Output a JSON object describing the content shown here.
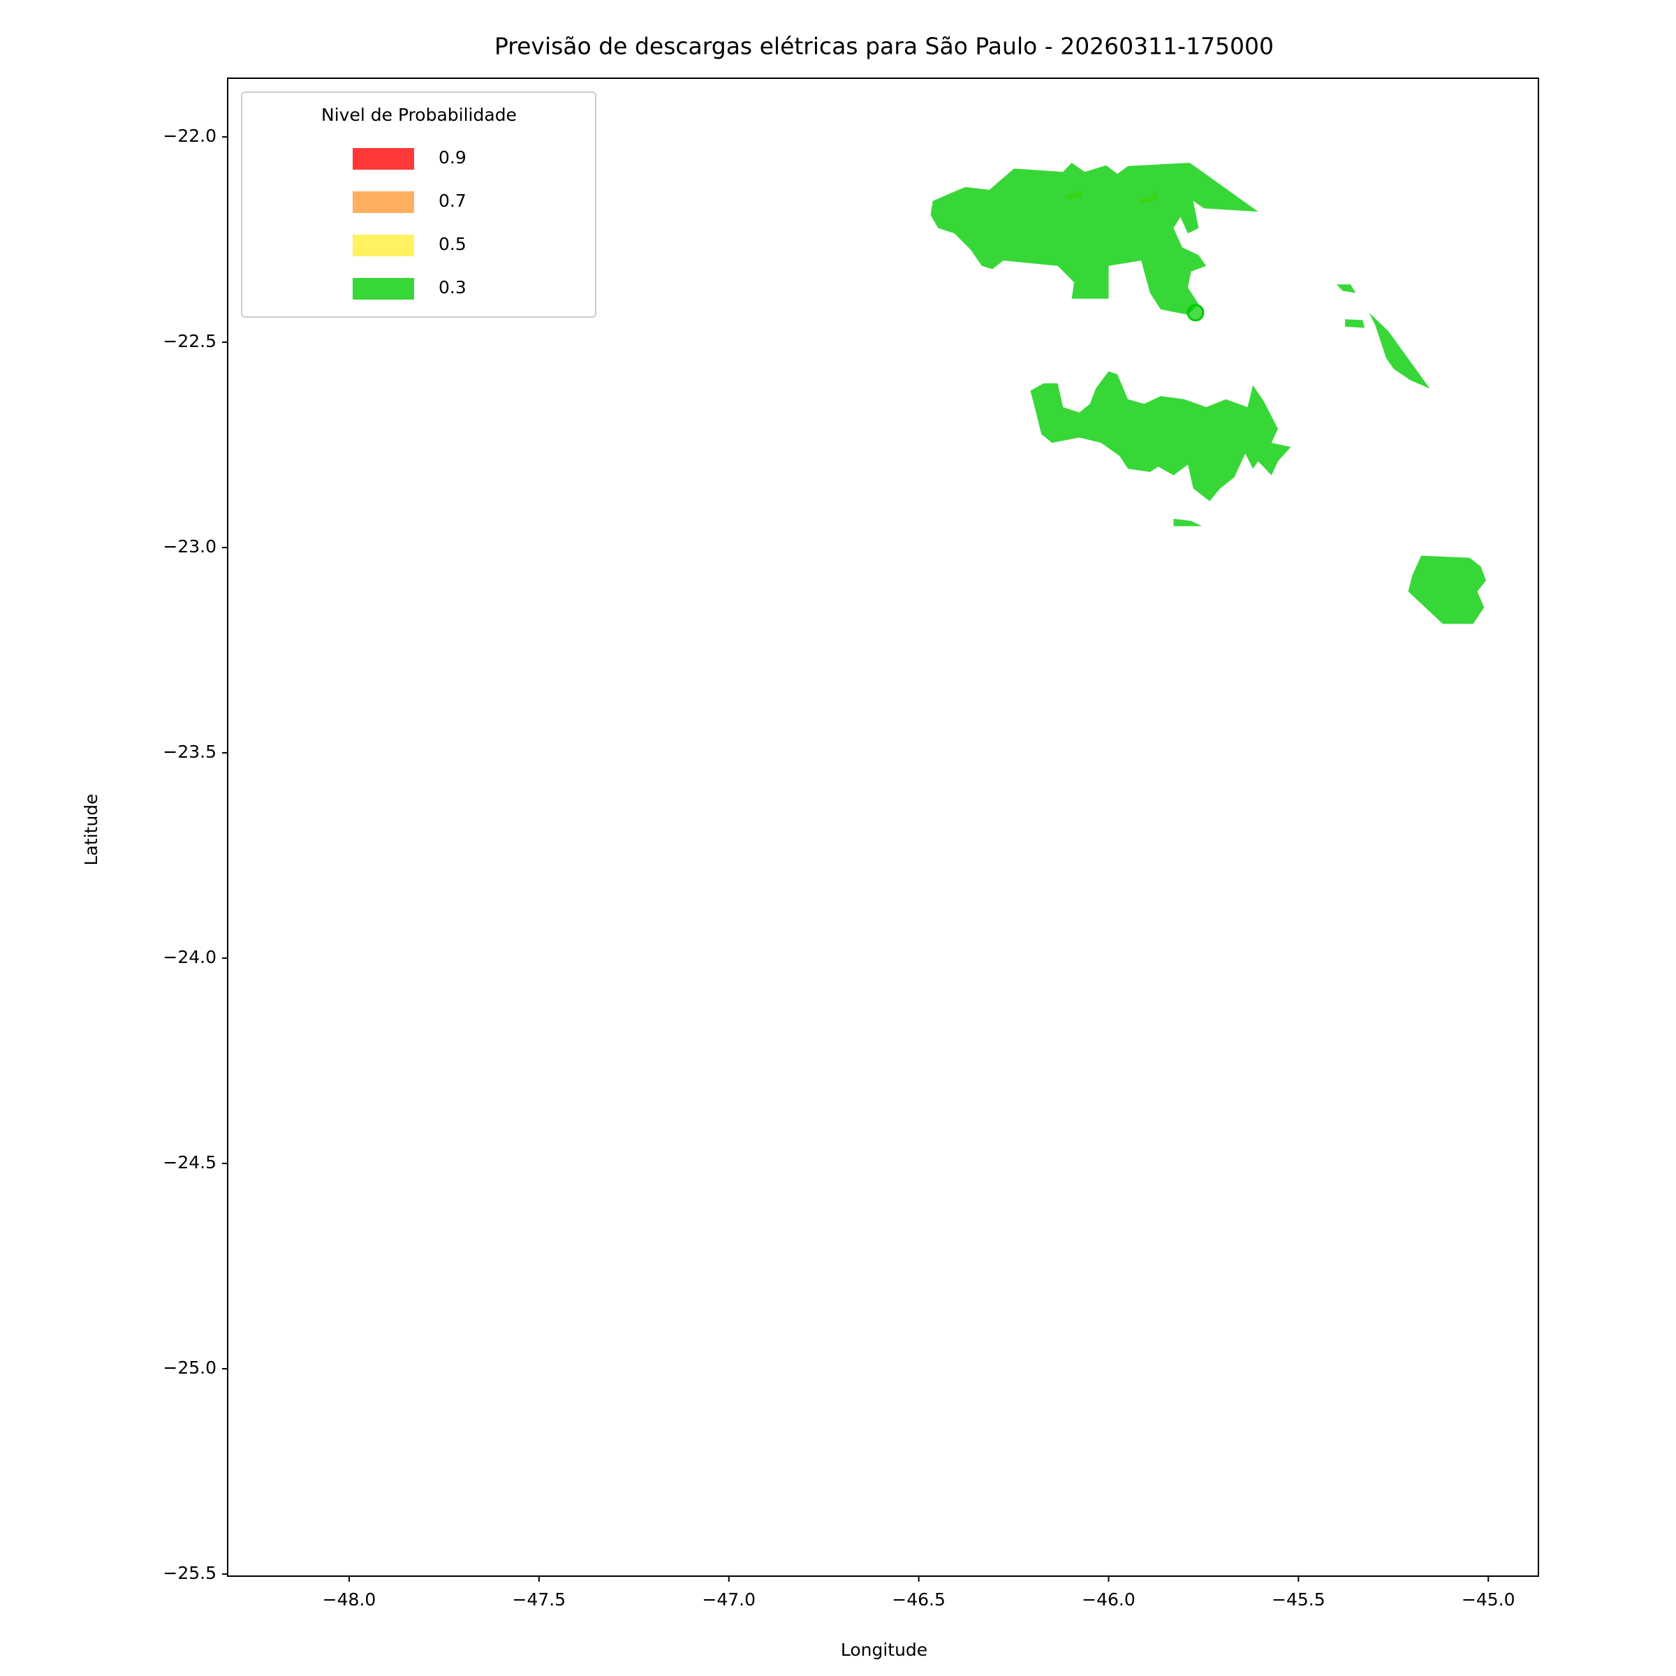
{
  "chart_data": {
    "type": "contour_map",
    "title": "Previsão de descargas elétricas para São Paulo - 20260311-175000",
    "x_label": "Longitude",
    "y_label": "Latitude",
    "xlim": [
      -48.32,
      -44.868
    ],
    "ylim": [
      -25.505,
      -21.857
    ],
    "xticks": [
      {
        "value": -48.0,
        "label": "−48.0"
      },
      {
        "value": -47.5,
        "label": "−47.5"
      },
      {
        "value": -47.0,
        "label": "−47.0"
      },
      {
        "value": -46.5,
        "label": "−46.5"
      },
      {
        "value": -46.0,
        "label": "−46.0"
      },
      {
        "value": -45.5,
        "label": "−45.5"
      },
      {
        "value": -45.0,
        "label": "−45.0"
      }
    ],
    "yticks": [
      {
        "value": -22.0,
        "label": "−22.0"
      },
      {
        "value": -22.5,
        "label": "−22.5"
      },
      {
        "value": -23.0,
        "label": "−23.0"
      },
      {
        "value": -23.5,
        "label": "−23.5"
      },
      {
        "value": -24.0,
        "label": "−24.0"
      },
      {
        "value": -24.5,
        "label": "−24.5"
      },
      {
        "value": -25.0,
        "label": "−25.0"
      },
      {
        "value": -25.5,
        "label": "−25.5"
      }
    ],
    "legend_title": "Nivel de Probabilidade",
    "legend_position": "upper left",
    "series": [
      {
        "name": "0.9",
        "color": "#ff0000",
        "polygons": []
      },
      {
        "name": "0.7",
        "color": "#ff9933",
        "polygons": []
      },
      {
        "name": "0.5",
        "color": "#ffee33",
        "polygons": [
          {
            "x": [
              -46.114,
              -46.074,
              -46.069,
              -46.114
            ],
            "y": [
              -22.143,
              -22.132,
              -22.148,
              -22.151
            ]
          },
          {
            "x": [
              -45.92,
              -45.886,
              -45.874,
              -45.874,
              -45.92
            ],
            "y": [
              -22.153,
              -22.143,
              -22.132,
              -22.156,
              -22.161
            ]
          }
        ]
      },
      {
        "name": "0.3",
        "color": "#00cc00",
        "polygons": [
          {
            "x": [
              -46.463,
              -46.411,
              -46.377,
              -46.314,
              -46.249,
              -46.12,
              -46.097,
              -46.063,
              -46.006,
              -45.977,
              -45.949,
              -45.786,
              -45.606,
              -45.749,
              -45.777,
              -45.763,
              -45.791,
              -45.811,
              -45.829,
              -45.806,
              -45.763,
              -45.743,
              -45.783,
              -45.791,
              -45.763,
              -45.791,
              -45.863,
              -45.891,
              -45.914,
              -46.0,
              -46.0,
              -46.097,
              -46.091,
              -46.134,
              -46.277,
              -46.306,
              -46.334,
              -46.363,
              -46.406,
              -46.449,
              -46.469
            ],
            "y": [
              -22.156,
              -22.135,
              -22.122,
              -22.129,
              -22.077,
              -22.085,
              -22.063,
              -22.085,
              -22.069,
              -22.09,
              -22.071,
              -22.063,
              -22.182,
              -22.174,
              -22.156,
              -22.222,
              -22.235,
              -22.195,
              -22.222,
              -22.269,
              -22.288,
              -22.314,
              -22.328,
              -22.367,
              -22.407,
              -22.433,
              -22.42,
              -22.38,
              -22.301,
              -22.314,
              -22.394,
              -22.394,
              -22.354,
              -22.314,
              -22.301,
              -22.322,
              -22.314,
              -22.275,
              -22.235,
              -22.222,
              -22.19
            ]
          },
          {
            "x": [
              -46.206,
              -46.171,
              -46.134,
              -46.12,
              -46.077,
              -46.049,
              -46.034,
              -46.0,
              -45.977,
              -45.949,
              -45.906,
              -45.863,
              -45.8,
              -45.743,
              -45.691,
              -45.634,
              -45.62,
              -45.591,
              -45.554,
              -45.571,
              -45.52,
              -45.554,
              -45.571,
              -45.606,
              -45.62,
              -45.64,
              -45.669,
              -45.706,
              -45.734,
              -45.777,
              -45.791,
              -45.829,
              -45.869,
              -45.891,
              -45.949,
              -45.971,
              -46.02,
              -46.077,
              -46.149,
              -46.177,
              -46.191
            ],
            "y": [
              -22.618,
              -22.6,
              -22.6,
              -22.658,
              -22.671,
              -22.65,
              -22.613,
              -22.571,
              -22.578,
              -22.639,
              -22.65,
              -22.631,
              -22.639,
              -22.658,
              -22.639,
              -22.658,
              -22.605,
              -22.644,
              -22.711,
              -22.745,
              -22.755,
              -22.79,
              -22.824,
              -22.79,
              -22.808,
              -22.771,
              -22.829,
              -22.856,
              -22.887,
              -22.856,
              -22.798,
              -22.824,
              -22.803,
              -22.816,
              -22.808,
              -22.777,
              -22.745,
              -22.732,
              -22.745,
              -22.724,
              -22.671
            ]
          },
          {
            "x": [
              -45.177,
              -45.049,
              -45.02,
              -45.006,
              -45.029,
              -45.011,
              -45.04,
              -45.12,
              -45.211,
              -45.2
            ],
            "y": [
              -23.02,
              -23.025,
              -23.046,
              -23.08,
              -23.107,
              -23.146,
              -23.186,
              -23.186,
              -23.107,
              -23.067
            ]
          },
          {
            "x": [
              -45.314,
              -45.263,
              -45.154,
              -45.206,
              -45.249,
              -45.269,
              -45.297
            ],
            "y": [
              -22.428,
              -22.473,
              -22.613,
              -22.592,
              -22.565,
              -22.539,
              -22.46
            ]
          },
          {
            "x": [
              -45.4,
              -45.363,
              -45.349,
              -45.383
            ],
            "y": [
              -22.359,
              -22.359,
              -22.38,
              -22.375
            ]
          },
          {
            "x": [
              -45.377,
              -45.331,
              -45.326,
              -45.377
            ],
            "y": [
              -22.444,
              -22.446,
              -22.465,
              -22.462
            ]
          },
          {
            "x": [
              -45.829,
              -45.783,
              -45.754,
              -45.829
            ],
            "y": [
              -22.93,
              -22.935,
              -22.948,
              -22.948
            ]
          }
        ]
      }
    ],
    "points": {
      "x": [
        -45.771
      ],
      "y": [
        -22.428
      ],
      "color": "#00cc00"
    }
  }
}
